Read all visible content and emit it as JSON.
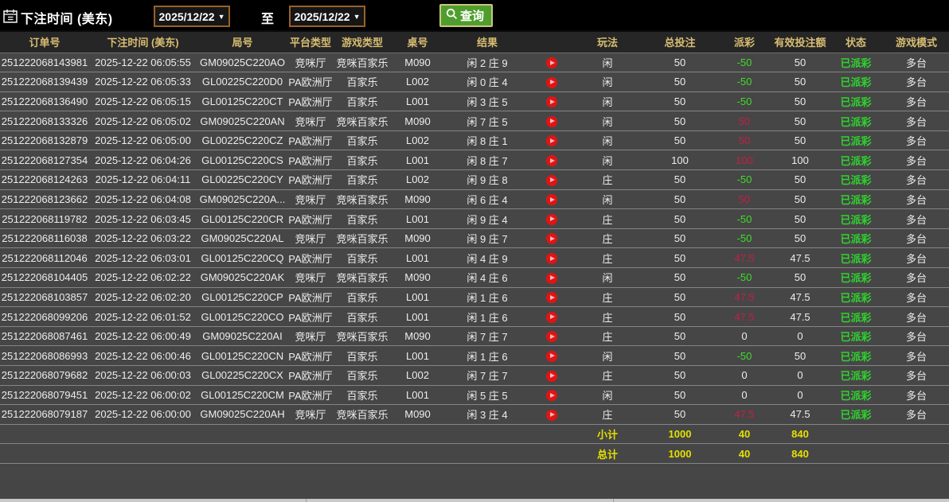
{
  "topbar": {
    "title": "下注时间 (美东)",
    "date_from": "2025/12/22",
    "date_to": "2025/12/22",
    "caret": "▼",
    "to_label": "至",
    "query_label": "查询"
  },
  "colors": {
    "header_text": "#d8bd72",
    "payout_win_red": "#c41f44",
    "payout_loss_green": "#3fdc2a",
    "status_green": "#2fd32f",
    "totals_yellow": "#e4e000",
    "query_button_green": "#4f9e2d",
    "date_border_orange": "#9a5f2a",
    "play_button_red": "#e01414"
  },
  "table": {
    "headers": [
      "订单号",
      "下注时间 (美东)",
      "局号",
      "平台类型",
      "游戏类型",
      "桌号",
      "结果",
      "",
      "玩法",
      "总投注",
      "派彩",
      "有效投注额",
      "状态",
      "游戏模式"
    ],
    "rows": [
      {
        "order": "251222068143981",
        "time": "2025-12-22 06:05:55",
        "round": "GM09025C220AO",
        "platform": "竞咪厅",
        "game_type": "竞咪百家乐",
        "table_no": "M090",
        "result": "闲 2 庄 9",
        "bet_on": "闲",
        "total_bet": "50",
        "payout": "-50",
        "payout_color": "green",
        "valid_bet": "50",
        "status": "已派彩",
        "mode": "多台"
      },
      {
        "order": "251222068139439",
        "time": "2025-12-22 06:05:33",
        "round": "GL00225C220D0",
        "platform": "PA欧洲厅",
        "game_type": "百家乐",
        "table_no": "L002",
        "result": "闲 0 庄 4",
        "bet_on": "闲",
        "total_bet": "50",
        "payout": "-50",
        "payout_color": "green",
        "valid_bet": "50",
        "status": "已派彩",
        "mode": "多台"
      },
      {
        "order": "251222068136490",
        "time": "2025-12-22 06:05:15",
        "round": "GL00125C220CT",
        "platform": "PA欧洲厅",
        "game_type": "百家乐",
        "table_no": "L001",
        "result": "闲 3 庄 5",
        "bet_on": "闲",
        "total_bet": "50",
        "payout": "-50",
        "payout_color": "green",
        "valid_bet": "50",
        "status": "已派彩",
        "mode": "多台"
      },
      {
        "order": "251222068133326",
        "time": "2025-12-22 06:05:02",
        "round": "GM09025C220AN",
        "platform": "竞咪厅",
        "game_type": "竞咪百家乐",
        "table_no": "M090",
        "result": "闲 7 庄 5",
        "bet_on": "闲",
        "total_bet": "50",
        "payout": "50",
        "payout_color": "red",
        "valid_bet": "50",
        "status": "已派彩",
        "mode": "多台"
      },
      {
        "order": "251222068132879",
        "time": "2025-12-22 06:05:00",
        "round": "GL00225C220CZ",
        "platform": "PA欧洲厅",
        "game_type": "百家乐",
        "table_no": "L002",
        "result": "闲 8 庄 1",
        "bet_on": "闲",
        "total_bet": "50",
        "payout": "50",
        "payout_color": "red",
        "valid_bet": "50",
        "status": "已派彩",
        "mode": "多台"
      },
      {
        "order": "251222068127354",
        "time": "2025-12-22 06:04:26",
        "round": "GL00125C220CS",
        "platform": "PA欧洲厅",
        "game_type": "百家乐",
        "table_no": "L001",
        "result": "闲 8 庄 7",
        "bet_on": "闲",
        "total_bet": "100",
        "payout": "100",
        "payout_color": "red",
        "valid_bet": "100",
        "status": "已派彩",
        "mode": "多台"
      },
      {
        "order": "251222068124263",
        "time": "2025-12-22 06:04:11",
        "round": "GL00225C220CY",
        "platform": "PA欧洲厅",
        "game_type": "百家乐",
        "table_no": "L002",
        "result": "闲 9 庄 8",
        "bet_on": "庄",
        "total_bet": "50",
        "payout": "-50",
        "payout_color": "green",
        "valid_bet": "50",
        "status": "已派彩",
        "mode": "多台"
      },
      {
        "order": "251222068123662",
        "time": "2025-12-22 06:04:08",
        "round": "GM09025C220A...",
        "platform": "竞咪厅",
        "game_type": "竞咪百家乐",
        "table_no": "M090",
        "result": "闲 6 庄 4",
        "bet_on": "闲",
        "total_bet": "50",
        "payout": "50",
        "payout_color": "red",
        "valid_bet": "50",
        "status": "已派彩",
        "mode": "多台"
      },
      {
        "order": "251222068119782",
        "time": "2025-12-22 06:03:45",
        "round": "GL00125C220CR",
        "platform": "PA欧洲厅",
        "game_type": "百家乐",
        "table_no": "L001",
        "result": "闲 9 庄 4",
        "bet_on": "庄",
        "total_bet": "50",
        "payout": "-50",
        "payout_color": "green",
        "valid_bet": "50",
        "status": "已派彩",
        "mode": "多台"
      },
      {
        "order": "251222068116038",
        "time": "2025-12-22 06:03:22",
        "round": "GM09025C220AL",
        "platform": "竞咪厅",
        "game_type": "竞咪百家乐",
        "table_no": "M090",
        "result": "闲 9 庄 7",
        "bet_on": "庄",
        "total_bet": "50",
        "payout": "-50",
        "payout_color": "green",
        "valid_bet": "50",
        "status": "已派彩",
        "mode": "多台"
      },
      {
        "order": "251222068112046",
        "time": "2025-12-22 06:03:01",
        "round": "GL00125C220CQ",
        "platform": "PA欧洲厅",
        "game_type": "百家乐",
        "table_no": "L001",
        "result": "闲 4 庄 9",
        "bet_on": "庄",
        "total_bet": "50",
        "payout": "47.5",
        "payout_color": "red",
        "valid_bet": "47.5",
        "status": "已派彩",
        "mode": "多台"
      },
      {
        "order": "251222068104405",
        "time": "2025-12-22 06:02:22",
        "round": "GM09025C220AK",
        "platform": "竞咪厅",
        "game_type": "竞咪百家乐",
        "table_no": "M090",
        "result": "闲 4 庄 6",
        "bet_on": "闲",
        "total_bet": "50",
        "payout": "-50",
        "payout_color": "green",
        "valid_bet": "50",
        "status": "已派彩",
        "mode": "多台"
      },
      {
        "order": "251222068103857",
        "time": "2025-12-22 06:02:20",
        "round": "GL00125C220CP",
        "platform": "PA欧洲厅",
        "game_type": "百家乐",
        "table_no": "L001",
        "result": "闲 1 庄 6",
        "bet_on": "庄",
        "total_bet": "50",
        "payout": "47.5",
        "payout_color": "red",
        "valid_bet": "47.5",
        "status": "已派彩",
        "mode": "多台"
      },
      {
        "order": "251222068099206",
        "time": "2025-12-22 06:01:52",
        "round": "GL00125C220CO",
        "platform": "PA欧洲厅",
        "game_type": "百家乐",
        "table_no": "L001",
        "result": "闲 1 庄 6",
        "bet_on": "庄",
        "total_bet": "50",
        "payout": "47.5",
        "payout_color": "red",
        "valid_bet": "47.5",
        "status": "已派彩",
        "mode": "多台"
      },
      {
        "order": "251222068087461",
        "time": "2025-12-22 06:00:49",
        "round": "GM09025C220AI",
        "platform": "竞咪厅",
        "game_type": "竞咪百家乐",
        "table_no": "M090",
        "result": "闲 7 庄 7",
        "bet_on": "庄",
        "total_bet": "50",
        "payout": "0",
        "payout_color": "neutral",
        "valid_bet": "0",
        "status": "已派彩",
        "mode": "多台"
      },
      {
        "order": "251222068086993",
        "time": "2025-12-22 06:00:46",
        "round": "GL00125C220CN",
        "platform": "PA欧洲厅",
        "game_type": "百家乐",
        "table_no": "L001",
        "result": "闲 1 庄 6",
        "bet_on": "闲",
        "total_bet": "50",
        "payout": "-50",
        "payout_color": "green",
        "valid_bet": "50",
        "status": "已派彩",
        "mode": "多台"
      },
      {
        "order": "251222068079682",
        "time": "2025-12-22 06:00:03",
        "round": "GL00225C220CX",
        "platform": "PA欧洲厅",
        "game_type": "百家乐",
        "table_no": "L002",
        "result": "闲 7 庄 7",
        "bet_on": "庄",
        "total_bet": "50",
        "payout": "0",
        "payout_color": "neutral",
        "valid_bet": "0",
        "status": "已派彩",
        "mode": "多台"
      },
      {
        "order": "251222068079451",
        "time": "2025-12-22 06:00:02",
        "round": "GL00125C220CM",
        "platform": "PA欧洲厅",
        "game_type": "百家乐",
        "table_no": "L001",
        "result": "闲 5 庄 5",
        "bet_on": "闲",
        "total_bet": "50",
        "payout": "0",
        "payout_color": "neutral",
        "valid_bet": "0",
        "status": "已派彩",
        "mode": "多台"
      },
      {
        "order": "251222068079187",
        "time": "2025-12-22 06:00:00",
        "round": "GM09025C220AH",
        "platform": "竞咪厅",
        "game_type": "竞咪百家乐",
        "table_no": "M090",
        "result": "闲 3 庄 4",
        "bet_on": "庄",
        "total_bet": "50",
        "payout": "47.5",
        "payout_color": "red",
        "valid_bet": "47.5",
        "status": "已派彩",
        "mode": "多台"
      }
    ],
    "subtotal": {
      "label": "小计",
      "total_bet": "1000",
      "payout": "40",
      "valid_bet": "840"
    },
    "total": {
      "label": "总计",
      "total_bet": "1000",
      "payout": "40",
      "valid_bet": "840"
    }
  }
}
